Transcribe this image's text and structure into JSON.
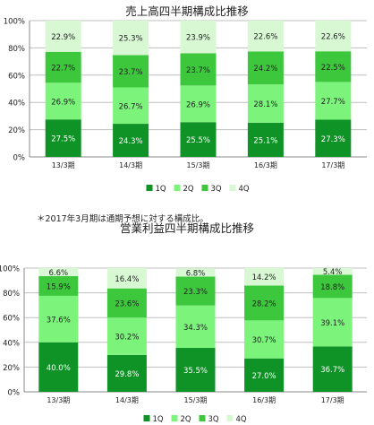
{
  "colors": {
    "q1": "#0f9226",
    "q2": "#7cf47c",
    "q3": "#3dc73d",
    "q4": "#d8f8d4",
    "grid": "#bfbfbf",
    "axis": "#888888"
  },
  "chart_data": [
    {
      "type": "bar",
      "stacked": true,
      "title": "売上高四半期構成比推移",
      "categories": [
        "13/3期",
        "14/3期",
        "15/3期",
        "16/3期",
        "17/3期"
      ],
      "series": [
        {
          "name": "1Q",
          "values": [
            27.5,
            24.3,
            25.5,
            25.1,
            27.3
          ],
          "labels": [
            "27.5%",
            "24.3%",
            "25.5%",
            "25.1%",
            "27.3%"
          ]
        },
        {
          "name": "2Q",
          "values": [
            26.9,
            26.7,
            26.9,
            28.1,
            27.7
          ],
          "labels": [
            "26.9%",
            "26.7%",
            "26.9%",
            "28.1%",
            "27.7%"
          ]
        },
        {
          "name": "3Q",
          "values": [
            22.7,
            23.7,
            23.7,
            24.2,
            22.5
          ],
          "labels": [
            "22.7%",
            "23.7%",
            "23.7%",
            "24.2%",
            "22.5%"
          ]
        },
        {
          "name": "4Q",
          "values": [
            22.9,
            25.3,
            23.9,
            22.6,
            22.6
          ],
          "labels": [
            "22.9%",
            "25.3%",
            "23.9%",
            "22.6%",
            "22.6%"
          ]
        }
      ],
      "yticks": [
        "0%",
        "20%",
        "40%",
        "60%",
        "80%",
        "100%"
      ],
      "ylim": [
        0,
        100
      ],
      "grid": true,
      "legend": "bottom"
    },
    {
      "type": "bar",
      "stacked": true,
      "title": "営業利益四半期構成比推移",
      "categories": [
        "13/3期",
        "14/3期",
        "15/3期",
        "16/3期",
        "17/3期"
      ],
      "series": [
        {
          "name": "1Q",
          "values": [
            40.0,
            29.8,
            35.5,
            27.0,
            36.7
          ],
          "labels": [
            "40.0%",
            "29.8%",
            "35.5%",
            "27.0%",
            "36.7%"
          ]
        },
        {
          "name": "2Q",
          "values": [
            37.6,
            30.2,
            34.3,
            30.7,
            39.1
          ],
          "labels": [
            "37.6%",
            "30.2%",
            "34.3%",
            "30.7%",
            "39.1%"
          ]
        },
        {
          "name": "3Q",
          "values": [
            15.9,
            23.6,
            23.3,
            28.2,
            18.8
          ],
          "labels": [
            "15.9%",
            "23.6%",
            "23.3%",
            "28.2%",
            "18.8%"
          ]
        },
        {
          "name": "4Q",
          "values": [
            6.6,
            16.4,
            6.8,
            14.2,
            5.4
          ],
          "labels": [
            "6.6%",
            "16.4%",
            "6.8%",
            "14.2%",
            "5.4%"
          ]
        }
      ],
      "yticks": [
        "0%",
        "20%",
        "40%",
        "60%",
        "80%",
        "100%"
      ],
      "ylim": [
        0,
        100
      ],
      "grid": true,
      "legend": "bottom"
    }
  ],
  "note": "＊2017年3月期は通期予想に対する構成比。"
}
